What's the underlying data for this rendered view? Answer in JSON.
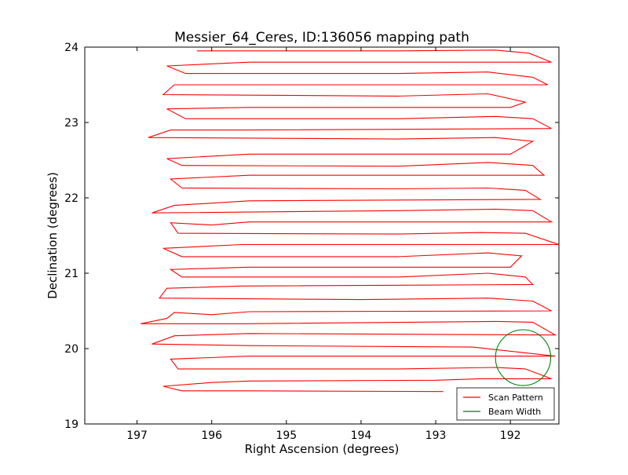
{
  "chart_data": {
    "type": "line",
    "title": "Messier_64_Ceres, ID:136056 mapping path",
    "xlabel": "Right Ascension (degrees)",
    "ylabel": "Declination (degrees)",
    "xlim": [
      197.7,
      191.35
    ],
    "ylim": [
      19,
      24
    ],
    "x_inverted": true,
    "xticks": [
      197,
      196,
      195,
      194,
      193,
      192
    ],
    "yticks": [
      19,
      20,
      21,
      22,
      23,
      24
    ],
    "grid": false,
    "legend_position": "lower-right",
    "series": [
      {
        "name": "Scan Pattern",
        "color": "#ff0000",
        "points": [
          [
            192.9,
            19.43
          ],
          [
            195.5,
            19.44
          ],
          [
            196.4,
            19.44
          ],
          [
            196.65,
            19.5
          ],
          [
            196.0,
            19.55
          ],
          [
            195.5,
            19.57
          ],
          [
            193.0,
            19.58
          ],
          [
            192.4,
            19.6
          ],
          [
            191.45,
            19.6
          ],
          [
            191.8,
            19.73
          ],
          [
            192.2,
            19.75
          ],
          [
            193.5,
            19.73
          ],
          [
            196.45,
            19.73
          ],
          [
            196.55,
            19.86
          ],
          [
            195.5,
            19.9
          ],
          [
            191.4,
            19.9
          ],
          [
            192.5,
            20.02
          ],
          [
            195.5,
            20.04
          ],
          [
            196.8,
            20.06
          ],
          [
            196.5,
            20.17
          ],
          [
            195.5,
            20.2
          ],
          [
            191.4,
            20.18
          ],
          [
            191.7,
            20.35
          ],
          [
            192.2,
            20.36
          ],
          [
            195.5,
            20.33
          ],
          [
            196.95,
            20.33
          ],
          [
            196.6,
            20.4
          ],
          [
            196.5,
            20.48
          ],
          [
            196.0,
            20.45
          ],
          [
            195.5,
            20.49
          ],
          [
            191.45,
            20.5
          ],
          [
            191.7,
            20.63
          ],
          [
            192.3,
            20.67
          ],
          [
            194.0,
            20.65
          ],
          [
            196.7,
            20.67
          ],
          [
            196.6,
            20.8
          ],
          [
            195.6,
            20.83
          ],
          [
            191.7,
            20.85
          ],
          [
            191.8,
            20.95
          ],
          [
            192.3,
            21.0
          ],
          [
            193.5,
            20.95
          ],
          [
            196.4,
            20.95
          ],
          [
            196.55,
            21.05
          ],
          [
            195.5,
            21.08
          ],
          [
            192.0,
            21.08
          ],
          [
            191.85,
            21.23
          ],
          [
            192.3,
            21.27
          ],
          [
            193.5,
            21.22
          ],
          [
            196.4,
            21.22
          ],
          [
            196.65,
            21.33
          ],
          [
            195.6,
            21.38
          ],
          [
            193.0,
            21.38
          ],
          [
            191.35,
            21.38
          ],
          [
            191.8,
            21.53
          ],
          [
            192.4,
            21.54
          ],
          [
            193.5,
            21.52
          ],
          [
            196.45,
            21.53
          ],
          [
            196.55,
            21.67
          ],
          [
            196.0,
            21.64
          ],
          [
            195.5,
            21.68
          ],
          [
            191.45,
            21.68
          ],
          [
            191.7,
            21.83
          ],
          [
            192.2,
            21.85
          ],
          [
            193.5,
            21.83
          ],
          [
            196.8,
            21.8
          ],
          [
            196.5,
            21.9
          ],
          [
            195.5,
            21.96
          ],
          [
            191.6,
            21.98
          ],
          [
            191.8,
            22.1
          ],
          [
            192.3,
            22.13
          ],
          [
            193.5,
            22.12
          ],
          [
            196.4,
            22.13
          ],
          [
            196.55,
            22.25
          ],
          [
            195.5,
            22.3
          ],
          [
            191.55,
            22.3
          ],
          [
            191.7,
            22.43
          ],
          [
            192.3,
            22.47
          ],
          [
            193.5,
            22.42
          ],
          [
            196.4,
            22.43
          ],
          [
            196.6,
            22.52
          ],
          [
            195.5,
            22.58
          ],
          [
            192.0,
            22.58
          ],
          [
            191.7,
            22.75
          ],
          [
            192.2,
            22.8
          ],
          [
            193.5,
            22.78
          ],
          [
            196.85,
            22.8
          ],
          [
            196.55,
            22.9
          ],
          [
            195.5,
            22.9
          ],
          [
            191.45,
            22.92
          ],
          [
            191.7,
            23.05
          ],
          [
            192.2,
            23.08
          ],
          [
            193.5,
            23.05
          ],
          [
            196.35,
            23.05
          ],
          [
            196.6,
            23.18
          ],
          [
            195.5,
            23.2
          ],
          [
            192.0,
            23.2
          ],
          [
            191.8,
            23.27
          ],
          [
            192.3,
            23.38
          ],
          [
            193.5,
            23.35
          ],
          [
            196.65,
            23.37
          ],
          [
            196.5,
            23.5
          ],
          [
            195.5,
            23.5
          ],
          [
            191.5,
            23.5
          ],
          [
            191.7,
            23.6
          ],
          [
            192.3,
            23.67
          ],
          [
            193.5,
            23.65
          ],
          [
            196.35,
            23.65
          ],
          [
            196.6,
            23.75
          ],
          [
            195.5,
            23.8
          ],
          [
            191.45,
            23.8
          ],
          [
            191.75,
            23.92
          ],
          [
            192.2,
            23.96
          ],
          [
            193.5,
            23.95
          ],
          [
            196.2,
            23.95
          ]
        ]
      },
      {
        "name": "Beam Width",
        "color": "#008000",
        "circle": {
          "center": [
            191.83,
            19.88
          ],
          "radius_deg": 0.37
        }
      }
    ]
  }
}
